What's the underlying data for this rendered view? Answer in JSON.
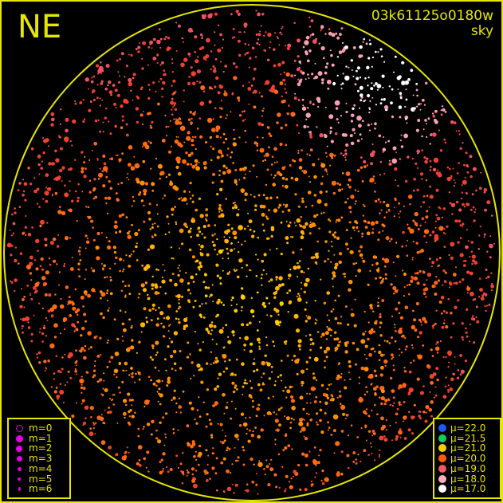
{
  "direction_label": "NE",
  "observation": {
    "id": "03k61125o0180w",
    "filter": "sky"
  },
  "colors": {
    "frame": "#e6e600",
    "magnitude_symbol": "#e600e6"
  },
  "magnitude_legend": [
    {
      "label": "m=0",
      "style": "open"
    },
    {
      "label": "m=1"
    },
    {
      "label": "m=2"
    },
    {
      "label": "m=3"
    },
    {
      "label": "m=4"
    },
    {
      "label": "m=5"
    },
    {
      "label": "m=6"
    }
  ],
  "surface_brightness_legend": [
    {
      "label": "μ=22.0",
      "color": "#1e5af0"
    },
    {
      "label": "μ=21.5",
      "color": "#10d060"
    },
    {
      "label": "μ=21.0",
      "color": "#f5d000"
    },
    {
      "label": "μ=20.0",
      "color": "#ff5a10"
    },
    {
      "label": "μ=19.0",
      "color": "#f05a60"
    },
    {
      "label": "μ=18.0",
      "color": "#f8b0c0"
    },
    {
      "label": "μ=17.0",
      "color": "#ffffff"
    }
  ]
}
